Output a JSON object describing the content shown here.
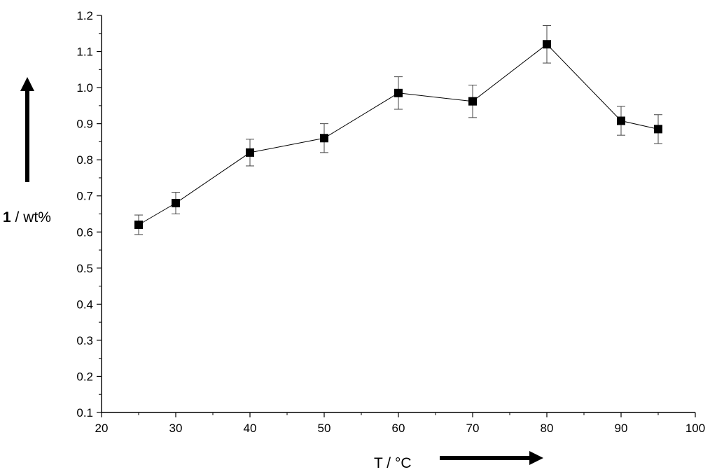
{
  "chart_data": {
    "type": "line",
    "marker": "square",
    "x": [
      25,
      30,
      40,
      50,
      60,
      70,
      80,
      90,
      95
    ],
    "y": [
      0.62,
      0.68,
      0.82,
      0.86,
      0.985,
      0.962,
      1.12,
      0.908,
      0.885
    ],
    "error": [
      0.027,
      0.03,
      0.037,
      0.04,
      0.045,
      0.045,
      0.052,
      0.04,
      0.04
    ],
    "xlim": [
      20,
      100
    ],
    "ylim": [
      0.1,
      1.2
    ],
    "xticks": [
      "20",
      "30",
      "40",
      "50",
      "60",
      "70",
      "80",
      "90",
      "100"
    ],
    "yticks": [
      "0.1",
      "0.2",
      "0.3",
      "0.4",
      "0.5",
      "0.6",
      "0.7",
      "0.8",
      "0.9",
      "1.0",
      "1.1",
      "1.2"
    ],
    "xlabel": "T / °C",
    "ylabel_bold": "1",
    "ylabel_rest": " / wt%",
    "grid": false,
    "legend": "none"
  }
}
